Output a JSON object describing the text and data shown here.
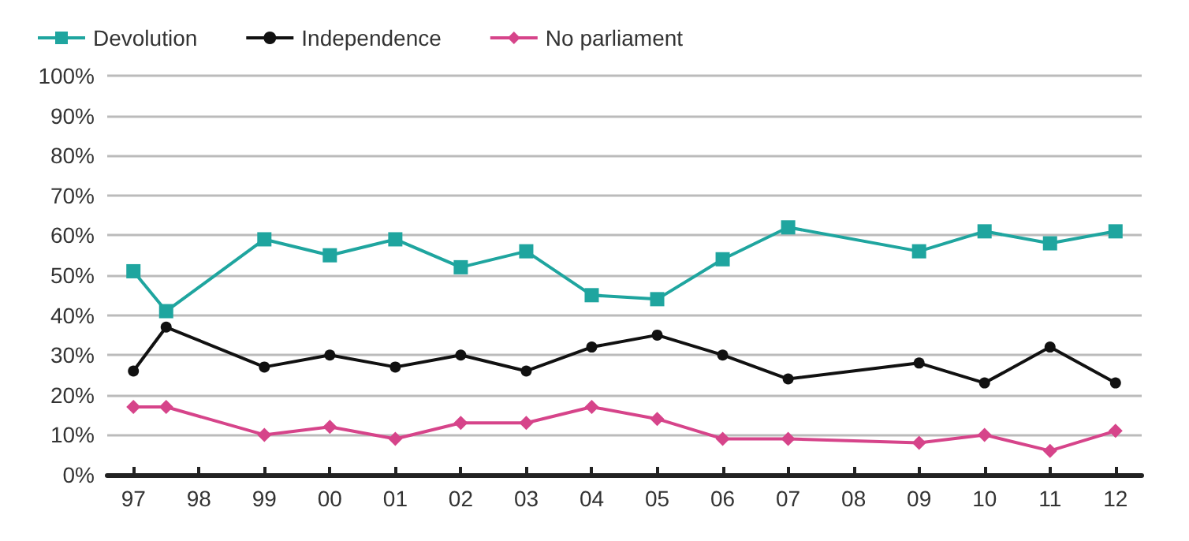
{
  "chart_data": {
    "type": "line",
    "x": [
      1997,
      1997.5,
      1999,
      2000,
      2001,
      2002,
      2003,
      2004,
      2005,
      2006,
      2007,
      2009,
      2010,
      2011,
      2012
    ],
    "series": [
      {
        "name": "Devolution",
        "color": "#1fa59f",
        "marker": "square",
        "values": [
          51,
          41,
          59,
          55,
          59,
          52,
          56,
          45,
          44,
          54,
          62,
          56,
          61,
          58,
          61
        ]
      },
      {
        "name": "Independence",
        "color": "#111111",
        "marker": "circle",
        "values": [
          26,
          37,
          27,
          30,
          27,
          30,
          26,
          32,
          35,
          30,
          24,
          28,
          23,
          32,
          23
        ]
      },
      {
        "name": "No parliament",
        "color": "#d6448a",
        "marker": "diamond",
        "values": [
          17,
          17,
          10,
          12,
          9,
          13,
          13,
          17,
          14,
          9,
          9,
          8,
          10,
          6,
          11
        ]
      }
    ],
    "xlim": [
      1996.6,
      2012.4
    ],
    "xticks": [
      {
        "value": 1997,
        "label": "97"
      },
      {
        "value": 1998,
        "label": "98"
      },
      {
        "value": 1999,
        "label": "99"
      },
      {
        "value": 2000,
        "label": "00"
      },
      {
        "value": 2001,
        "label": "01"
      },
      {
        "value": 2002,
        "label": "02"
      },
      {
        "value": 2003,
        "label": "03"
      },
      {
        "value": 2004,
        "label": "04"
      },
      {
        "value": 2005,
        "label": "05"
      },
      {
        "value": 2006,
        "label": "06"
      },
      {
        "value": 2007,
        "label": "07"
      },
      {
        "value": 2008,
        "label": "08"
      },
      {
        "value": 2009,
        "label": "09"
      },
      {
        "value": 2010,
        "label": "10"
      },
      {
        "value": 2011,
        "label": "11"
      },
      {
        "value": 2012,
        "label": "12"
      }
    ],
    "ylim": [
      0,
      100
    ],
    "yticks": [
      {
        "value": 0,
        "label": "0%"
      },
      {
        "value": 10,
        "label": "10%"
      },
      {
        "value": 20,
        "label": "20%"
      },
      {
        "value": 30,
        "label": "30%"
      },
      {
        "value": 40,
        "label": "40%"
      },
      {
        "value": 50,
        "label": "50%"
      },
      {
        "value": 60,
        "label": "60%"
      },
      {
        "value": 70,
        "label": "70%"
      },
      {
        "value": 80,
        "label": "80%"
      },
      {
        "value": 90,
        "label": "90%"
      },
      {
        "value": 100,
        "label": "100%"
      }
    ],
    "grid": "y",
    "legend": "top left",
    "line_style": "solid"
  }
}
